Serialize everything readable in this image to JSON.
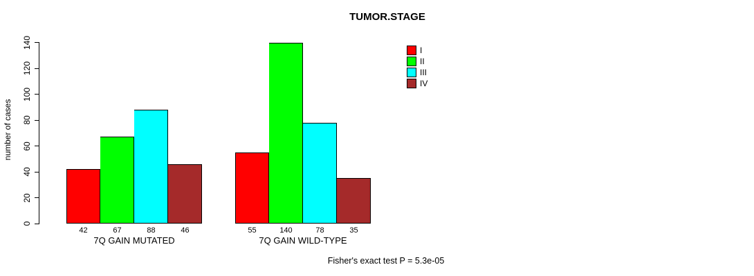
{
  "chart_data": {
    "type": "bar",
    "grouped": true,
    "title": "TUMOR.STAGE",
    "xlabel": "",
    "ylabel": "number of cases",
    "ylim": [
      0,
      140
    ],
    "yticks": [
      0,
      20,
      40,
      60,
      80,
      100,
      120,
      140
    ],
    "grid": false,
    "categories": [
      "7Q GAIN MUTATED",
      "7Q GAIN WILD-TYPE"
    ],
    "series": [
      {
        "name": "I",
        "color": "#ff0000",
        "values": [
          42,
          55
        ]
      },
      {
        "name": "II",
        "color": "#00ff00",
        "values": [
          67,
          140
        ]
      },
      {
        "name": "III",
        "color": "#00ffff",
        "values": [
          88,
          78
        ]
      },
      {
        "name": "IV",
        "color": "#a52a2a",
        "values": [
          46,
          35
        ]
      }
    ],
    "bar_value_labels": [
      [
        "42",
        "67",
        "88",
        "46"
      ],
      [
        "55",
        "140",
        "78",
        "35"
      ]
    ],
    "legend": {
      "position": "upper-right",
      "entries": [
        "I",
        "II",
        "III",
        "IV"
      ]
    },
    "annotation": "Fisher's exact test P = 5.3e-05"
  }
}
